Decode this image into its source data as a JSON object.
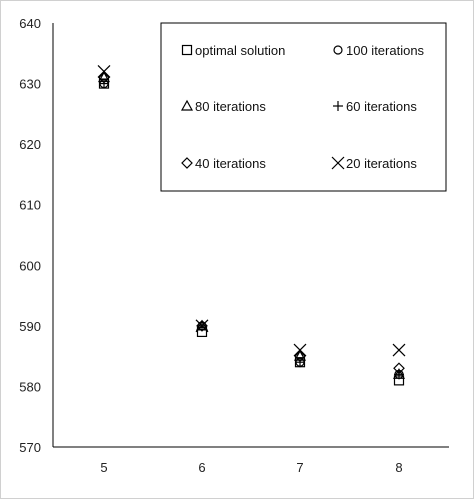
{
  "chart_data": {
    "type": "scatter",
    "title": "",
    "xlabel": "",
    "ylabel": "",
    "categories": [
      "5",
      "6",
      "7",
      "8"
    ],
    "ylim": [
      570,
      640
    ],
    "yticks": [
      570,
      580,
      590,
      600,
      610,
      620,
      630,
      640
    ],
    "grid": false,
    "legend_position": "top-right",
    "series": [
      {
        "name": "optimal solution",
        "marker": "square",
        "values": [
          630,
          589,
          584,
          581
        ]
      },
      {
        "name": "100 iterations",
        "marker": "circle",
        "values": [
          630,
          590,
          584,
          582
        ]
      },
      {
        "name": "80 iterations",
        "marker": "triangle",
        "values": [
          631,
          590,
          585,
          582
        ]
      },
      {
        "name": "60 iterations",
        "marker": "plus",
        "values": [
          630,
          590,
          584,
          582
        ]
      },
      {
        "name": "40 iterations",
        "marker": "diamond",
        "values": [
          631,
          590,
          585,
          583
        ]
      },
      {
        "name": "20 iterations",
        "marker": "x",
        "values": [
          632,
          590,
          586,
          586
        ]
      }
    ],
    "colors": {
      "marker": "#000000",
      "axis": "#000000",
      "text": "#222222"
    }
  }
}
